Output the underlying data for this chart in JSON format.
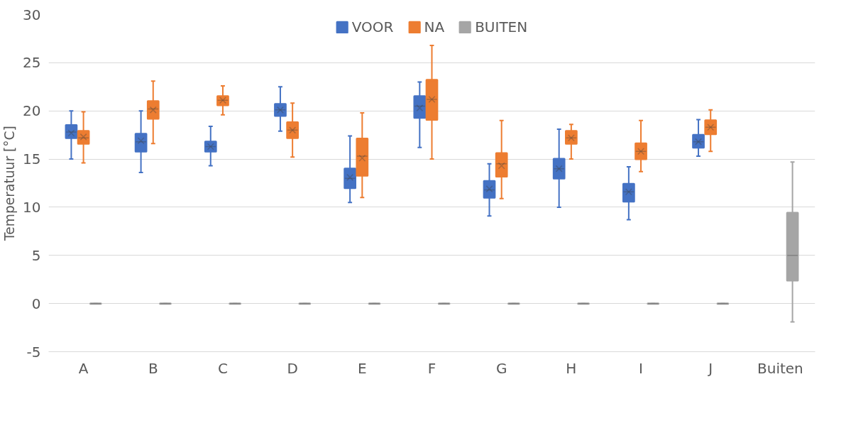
{
  "chart_data": {
    "type": "box",
    "ylabel": "Temperatuur [°C]",
    "categories": [
      "A",
      "B",
      "C",
      "D",
      "E",
      "F",
      "G",
      "H",
      "I",
      "J",
      "Buiten"
    ],
    "ylim": [
      -5,
      30
    ],
    "yticks": [
      -5,
      0,
      5,
      10,
      15,
      20,
      25,
      30
    ],
    "grid": "y",
    "legend": "top",
    "series": [
      {
        "name": "VOOR",
        "color": "#4472c4",
        "boxes": [
          {
            "low": 15,
            "q1": 17.2,
            "median": 17.8,
            "q3": 18.5,
            "high": 20,
            "mean": 17.7
          },
          {
            "low": 13.6,
            "q1": 15.8,
            "median": 16.8,
            "q3": 17.6,
            "high": 20,
            "mean": 16.9
          },
          {
            "low": 14.3,
            "q1": 15.8,
            "median": 16.3,
            "q3": 16.8,
            "high": 18.4,
            "mean": 16.3
          },
          {
            "low": 17.9,
            "q1": 19.5,
            "median": 20.1,
            "q3": 20.7,
            "high": 22.5,
            "mean": 20.1
          },
          {
            "low": 10.5,
            "q1": 12,
            "median": 13,
            "q3": 14,
            "high": 17.4,
            "mean": 13.1
          },
          {
            "low": 16.2,
            "q1": 19.3,
            "median": 20.5,
            "q3": 21.5,
            "high": 23,
            "mean": 20.3
          },
          {
            "low": 9.1,
            "q1": 11,
            "median": 11.8,
            "q3": 12.7,
            "high": 14.5,
            "mean": 11.9
          },
          {
            "low": 10,
            "q1": 13,
            "median": 14,
            "q3": 15,
            "high": 18.1,
            "mean": 14
          },
          {
            "low": 8.7,
            "q1": 10.6,
            "median": 11.6,
            "q3": 12.4,
            "high": 14.2,
            "mean": 11.6
          },
          {
            "low": 15.3,
            "q1": 16.2,
            "median": 16.8,
            "q3": 17.5,
            "high": 19.1,
            "mean": 16.8
          },
          null
        ]
      },
      {
        "name": "NA",
        "color": "#ed7d31",
        "boxes": [
          {
            "low": 14.6,
            "q1": 16.6,
            "median": 17.2,
            "q3": 17.9,
            "high": 19.9,
            "mean": 17.3
          },
          {
            "low": 16.6,
            "q1": 19.2,
            "median": 20.2,
            "q3": 21,
            "high": 23.1,
            "mean": 20.1
          },
          {
            "low": 19.6,
            "q1": 20.6,
            "median": 21.1,
            "q3": 21.5,
            "high": 22.6,
            "mean": 21.1
          },
          {
            "low": 15.2,
            "q1": 17.2,
            "median": 18,
            "q3": 18.8,
            "high": 20.8,
            "mean": 18
          },
          {
            "low": 11,
            "q1": 13.3,
            "median": 15.3,
            "q3": 17.1,
            "high": 19.8,
            "mean": 15.1
          },
          {
            "low": 15,
            "q1": 19.1,
            "median": 21.2,
            "q3": 23.2,
            "high": 26.8,
            "mean": 21.2
          },
          {
            "low": 10.9,
            "q1": 13.2,
            "median": 14.5,
            "q3": 15.6,
            "high": 19,
            "mean": 14.3
          },
          {
            "low": 15,
            "q1": 16.6,
            "median": 17.2,
            "q3": 17.9,
            "high": 18.6,
            "mean": 17.2
          },
          {
            "low": 13.7,
            "q1": 15,
            "median": 15.8,
            "q3": 16.6,
            "high": 19,
            "mean": 15.8
          },
          {
            "low": 15.8,
            "q1": 17.6,
            "median": 18.3,
            "q3": 19,
            "high": 20.1,
            "mean": 18.3
          },
          null
        ]
      },
      {
        "name": "BUITEN",
        "color": "#a5a5a5",
        "boxes": [
          {
            "low": 0,
            "q1": 0,
            "median": 0,
            "q3": 0,
            "high": 0
          },
          {
            "low": 0,
            "q1": 0,
            "median": 0,
            "q3": 0,
            "high": 0
          },
          {
            "low": 0,
            "q1": 0,
            "median": 0,
            "q3": 0,
            "high": 0
          },
          {
            "low": 0,
            "q1": 0,
            "median": 0,
            "q3": 0,
            "high": 0
          },
          {
            "low": 0,
            "q1": 0,
            "median": 0,
            "q3": 0,
            "high": 0
          },
          {
            "low": 0,
            "q1": 0,
            "median": 0,
            "q3": 0,
            "high": 0
          },
          {
            "low": 0,
            "q1": 0,
            "median": 0,
            "q3": 0,
            "high": 0
          },
          {
            "low": 0,
            "q1": 0,
            "median": 0,
            "q3": 0,
            "high": 0
          },
          {
            "low": 0,
            "q1": 0,
            "median": 0,
            "q3": 0,
            "high": 0
          },
          {
            "low": 0,
            "q1": 0,
            "median": 0,
            "q3": 0,
            "high": 0
          },
          {
            "low": -1.9,
            "q1": 2.4,
            "median": 5,
            "q3": 9.4,
            "high": 14.7
          }
        ]
      }
    ]
  }
}
